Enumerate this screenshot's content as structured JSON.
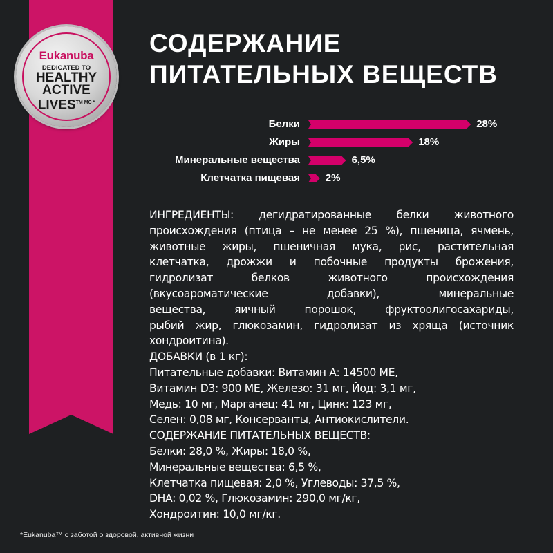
{
  "brand": {
    "logo_text": "Eukanuba",
    "badge_line1": "DEDICATED TO",
    "badge_lines": [
      "HEALTHY",
      "ACTIVE",
      "LIVES"
    ],
    "badge_mark": "TM MC *",
    "ribbon_color": "#cc1466"
  },
  "title": {
    "line1": "СОДЕРЖАНИЕ",
    "line2": "ПИТАТЕЛЬНЫХ ВЕЩЕСТВ"
  },
  "nutrients": {
    "bar_color": "#d4006a",
    "items": [
      {
        "label": "Белки",
        "value": 28,
        "value_label": "28%"
      },
      {
        "label": "Жиры",
        "value": 18,
        "value_label": "18%"
      },
      {
        "label": "Минеральные вещества",
        "value": 6.5,
        "value_label": "6,5%"
      },
      {
        "label": "Клетчатка пищевая",
        "value": 2,
        "value_label": "2%"
      }
    ]
  },
  "composition": {
    "lines": [
      "ИНГРЕДИЕНТЫ: дегидратированные белки животного",
      "происхождения (птица – не менее 25 %), пшеница, ячмень,",
      "животные жиры, пшеничная мука, рис, растительная",
      "клетчатка, дрожжи и побочные продукты брожения,",
      "гидролизат белков животного происхождения",
      "(вкусоароматические добавки), минеральные",
      "вещества, яичный порошок, фруктоолигосахариды,",
      "рыбий жир, глюкозамин, гидролизат из хряща (источник",
      "хондроитина).",
      "ДОБАВКИ (в 1 кг):",
      "Питательные добавки: Витамин А: 14500 МЕ,",
      "Витамин D3: 900 МЕ, Железо: 31 мг, Йод: 3,1 мг,",
      "Медь: 10 мг, Марганец: 41 мг, Цинк: 123 мг,",
      "Селен: 0,08 мг, Консерванты, Антиокислители.",
      "СОДЕРЖАНИЕ ПИТАТЕЛЬНЫХ ВЕЩЕСТВ:",
      "Белки: 28,0 %, Жиры: 18,0 %,",
      "Минеральные вещества: 6,5 %,",
      "Клетчатка пищевая: 2,0 %, Углеводы: 37,5 %,",
      "DHA: 0,02 %, Глюкозамин: 290,0 мг/кг,",
      "Хондроитин: 10,0 мг/кг."
    ]
  },
  "footnote": "*Eukanuba™ с заботой о здоровой, активной жизни"
}
